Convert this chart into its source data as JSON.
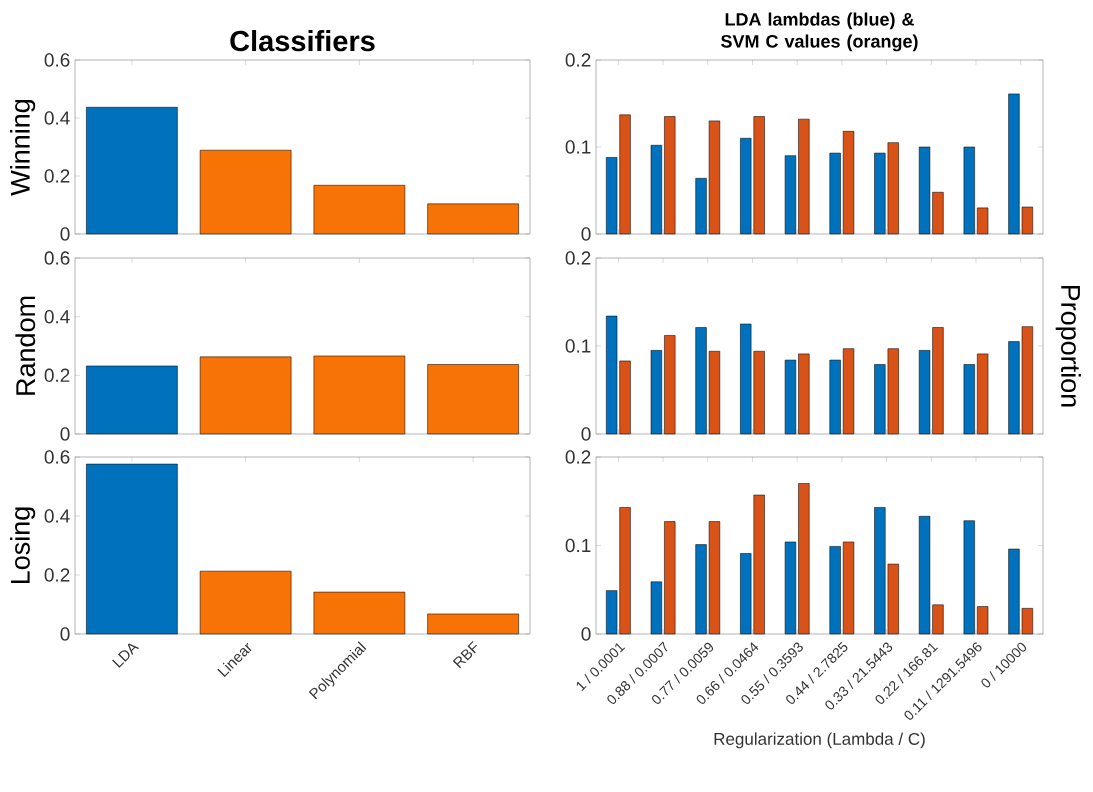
{
  "chart_data": [
    {
      "type": "bar",
      "title": "Classifiers",
      "ylabel": "Winning",
      "categories": [
        null,
        null,
        null,
        null
      ],
      "values": [
        0.437,
        0.289,
        0.168,
        0.104
      ],
      "colors": [
        "#0072bd",
        "#f87306",
        "#f87306",
        "#f87306"
      ],
      "ylim": [
        0,
        0.6
      ],
      "yticks": [
        0,
        0.2,
        0.4,
        0.6
      ],
      "tick_labels": "y"
    },
    {
      "type": "bar",
      "title": "LDA lambdas (blue) & SVM C values (orange)",
      "categories": [
        null,
        null,
        null,
        null,
        null,
        null,
        null,
        null,
        null,
        null
      ],
      "series": [
        {
          "color": "#0072bd",
          "values": [
            0.088,
            0.102,
            0.064,
            0.11,
            0.09,
            0.093,
            0.093,
            0.1,
            0.1,
            0.161
          ]
        },
        {
          "color": "#d95319",
          "values": [
            0.137,
            0.135,
            0.13,
            0.135,
            0.132,
            0.118,
            0.105,
            0.048,
            0.03,
            0.031
          ]
        }
      ],
      "ylim": [
        0,
        0.2
      ],
      "yticks": [
        0,
        0.1,
        0.2
      ],
      "tick_labels": "y"
    },
    {
      "type": "bar",
      "ylabel": "Random",
      "categories": [
        null,
        null,
        null,
        null
      ],
      "values": [
        0.232,
        0.263,
        0.266,
        0.237
      ],
      "colors": [
        "#0072bd",
        "#f87306",
        "#f87306",
        "#f87306"
      ],
      "ylim": [
        0,
        0.6
      ],
      "yticks": [
        0,
        0.2,
        0.4,
        0.6
      ],
      "tick_labels": "y"
    },
    {
      "type": "bar",
      "ylabel": "Proportion",
      "categories": [
        null,
        null,
        null,
        null,
        null,
        null,
        null,
        null,
        null,
        null
      ],
      "series": [
        {
          "color": "#0072bd",
          "values": [
            0.134,
            0.095,
            0.121,
            0.125,
            0.084,
            0.084,
            0.079,
            0.095,
            0.079,
            0.105
          ]
        },
        {
          "color": "#d95319",
          "values": [
            0.083,
            0.112,
            0.094,
            0.094,
            0.091,
            0.097,
            0.097,
            0.121,
            0.091,
            0.122
          ]
        }
      ],
      "ylim": [
        0,
        0.2
      ],
      "yticks": [
        0,
        0.1,
        0.2
      ],
      "tick_labels": "y"
    },
    {
      "type": "bar",
      "ylabel": "Losing",
      "categories": [
        "LDA",
        "Linear",
        "Polynomial",
        "RBF"
      ],
      "values": [
        0.576,
        0.213,
        0.142,
        0.068
      ],
      "colors": [
        "#0072bd",
        "#f87306",
        "#f87306",
        "#f87306"
      ],
      "ylim": [
        0,
        0.6
      ],
      "yticks": [
        0,
        0.2,
        0.4,
        0.6
      ]
    },
    {
      "type": "bar",
      "xlabel": "Regularization (Lambda / C)",
      "categories": [
        "1 / 0.0001",
        "0.88 / 0.0007",
        "0.77 / 0.0059",
        "0.66 / 0.0464",
        "0.55 / 0.3593",
        "0.44 / 2.7825",
        "0.33 / 21.5443",
        "0.22 / 166.81",
        "0.11 / 1291.5496",
        "0 / 10000"
      ],
      "series": [
        {
          "color": "#0072bd",
          "values": [
            0.049,
            0.059,
            0.101,
            0.091,
            0.104,
            0.099,
            0.143,
            0.133,
            0.128,
            0.096
          ]
        },
        {
          "color": "#d95319",
          "values": [
            0.143,
            0.127,
            0.127,
            0.157,
            0.17,
            0.104,
            0.079,
            0.033,
            0.031,
            0.029
          ]
        }
      ],
      "ylim": [
        0,
        0.2
      ],
      "yticks": [
        0,
        0.1,
        0.2
      ]
    }
  ]
}
